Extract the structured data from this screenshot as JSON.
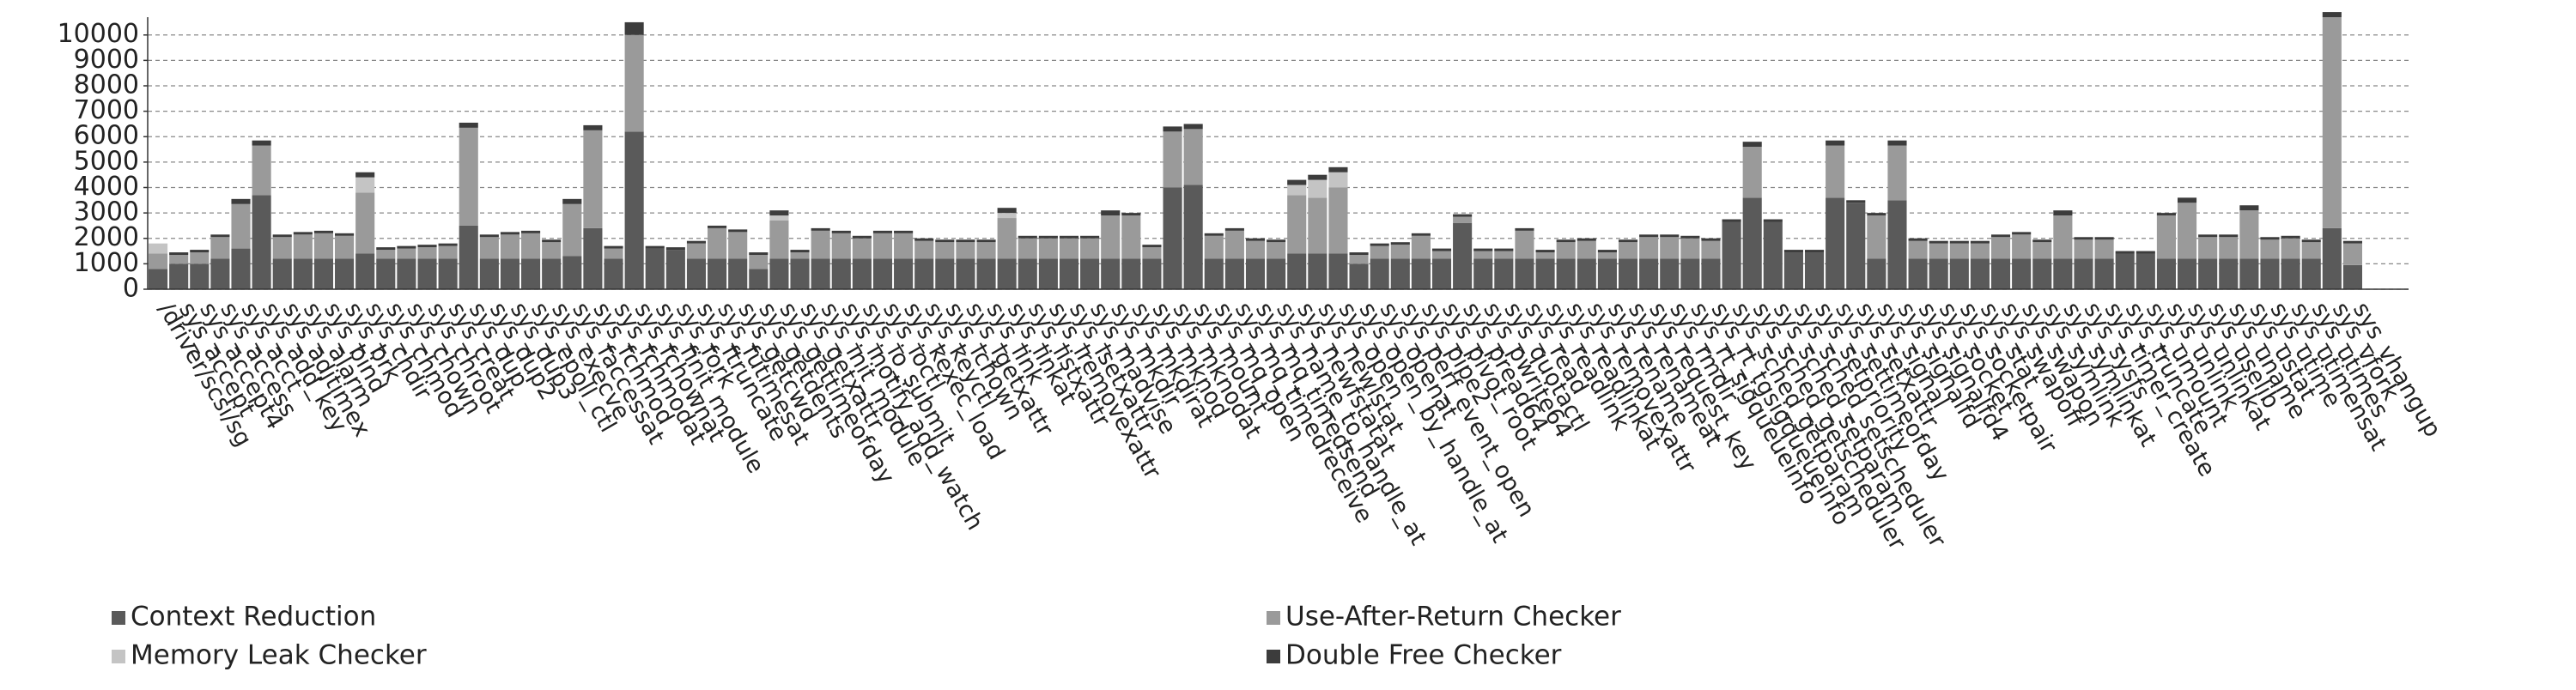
{
  "chart_data": {
    "type": "stacked_bar",
    "categories": [
      "/driver/scsi/sg",
      "sys_accept",
      "sys_accept4",
      "sys_access",
      "sys_acct",
      "sys_add_key",
      "sys_adjtimex",
      "sys_alarm",
      "sys_bind",
      "sys_brk",
      "sys_chdir",
      "sys_chmod",
      "sys_chown",
      "sys_chroot",
      "sys_creat",
      "sys_dup",
      "sys_dup2",
      "sys_dup3",
      "sys_epoll_ctl",
      "sys_execve",
      "sys_faccessat",
      "sys_fchmod",
      "sys_fchmodat",
      "sys_fchownat",
      "sys_finit_module",
      "sys_fork",
      "sys_ftruncate",
      "sys_futimesat",
      "sys_getcwd",
      "sys_getdents",
      "sys_gettimeofday",
      "sys_getxattr",
      "sys_init_module",
      "sys_inotify_add_watch",
      "sys_io_submit",
      "sys_ioctl",
      "sys_kexec_load",
      "sys_keyctl",
      "sys_lchown",
      "sys_lgetxattr",
      "sys_link",
      "sys_linkat",
      "sys_listxattr",
      "sys_lremovexattr",
      "sys_lsetxattr",
      "sys_madvise",
      "sys_mkdir",
      "sys_mkdirat",
      "sys_mknod",
      "sys_mknodat",
      "sys_mount",
      "sys_mq_open",
      "sys_mq_timedreceive",
      "sys_mq_timedsend",
      "sys_name_to_handle_at",
      "sys_newfstatat",
      "sys_newlstat",
      "sys_open",
      "sys_open_by_handle_at",
      "sys_openat",
      "sys_perf_event_open",
      "sys_pipe2",
      "sys_pivot_root",
      "sys_pread64",
      "sys_pwrite64",
      "sys_quotactl",
      "sys_read",
      "sys_readlink",
      "sys_readlinkat",
      "sys_removexattr",
      "sys_rename",
      "sys_renameat",
      "sys_request_key",
      "sys_rmdir",
      "sys_rt_sigqueueinfo",
      "sys_rt_tgsigqueueinfo",
      "sys_sched_getparam",
      "sys_sched_getscheduler",
      "sys_sched_setparam",
      "sys_sched_setscheduler",
      "sys_setpriority",
      "sys_settimeofday",
      "sys_setxattr",
      "sys_signal",
      "sys_signalfd",
      "sys_signalfd4",
      "sys_socket",
      "sys_socketpair",
      "sys_stat",
      "sys_swapoff",
      "sys_swapon",
      "sys_symlink",
      "sys_symlinkat",
      "sys_sysfs",
      "sys_timer_create",
      "sys_truncate",
      "sys_umount",
      "sys_unlink",
      "sys_unlinkat",
      "sys_uselib",
      "sys_uname",
      "sys_ustat",
      "sys_utime",
      "sys_utimensat",
      "sys_utimes",
      "sys_vfork",
      "sys_vhangup"
    ],
    "series": [
      {
        "name": "Context Reduction",
        "color": "#5a5a5a",
        "values": [
          800,
          1000,
          1000,
          1200,
          1600,
          3700,
          1200,
          1200,
          1200,
          1200,
          1400,
          1200,
          1200,
          1200,
          1200,
          2500,
          1200,
          1200,
          1200,
          1200,
          1300,
          2400,
          1200,
          6200,
          1600,
          1550,
          1200,
          1200,
          1200,
          800,
          1200,
          1200,
          1200,
          1200,
          1200,
          1200,
          1200,
          1200,
          1200,
          1200,
          1200,
          1200,
          1200,
          1200,
          1200,
          1200,
          1200,
          1200,
          1200,
          4000,
          4100,
          1200,
          1200,
          1200,
          1200,
          1400,
          1400,
          1400,
          1000,
          1200,
          1200,
          1200,
          1200,
          2600,
          1200,
          1200,
          1200,
          1200,
          1200,
          1200,
          1200,
          1200,
          1200,
          1200,
          1200,
          1200,
          2650,
          3600,
          2650,
          1450,
          1450,
          3600,
          3400,
          1200,
          3500,
          1200,
          1200,
          1200,
          1200,
          1200,
          1200,
          1200,
          1200,
          1200,
          1200,
          1400,
          1400,
          1200,
          1200,
          1200,
          1200,
          1200,
          1200,
          1200,
          1200,
          2400,
          950
        ]
      },
      {
        "name": "Use-After-Return Checker",
        "color": "#9a9a9a",
        "values": [
          600,
          350,
          450,
          850,
          1750,
          1950,
          850,
          950,
          1000,
          900,
          2400,
          350,
          400,
          450,
          500,
          3850,
          850,
          950,
          1000,
          650,
          2050,
          3850,
          400,
          3800,
          0,
          0,
          600,
          1200,
          1050,
          550,
          1500,
          250,
          1100,
          1000,
          800,
          1000,
          1000,
          700,
          650,
          650,
          650,
          1600,
          800,
          800,
          800,
          800,
          1700,
          1700,
          450,
          2200,
          2200,
          900,
          1100,
          700,
          650,
          2300,
          2200,
          2600,
          350,
          500,
          550,
          900,
          300,
          250,
          300,
          300,
          1100,
          250,
          650,
          700,
          250,
          650,
          850,
          850,
          800,
          700,
          0,
          2000,
          0,
          0,
          0,
          2050,
          0,
          1700,
          2150,
          700,
          600,
          600,
          600,
          850,
          950,
          650,
          1700,
          750,
          750,
          0,
          0,
          1700,
          2200,
          850,
          850,
          1900,
          750,
          800,
          650,
          8300,
          850
        ]
      },
      {
        "name": "Memory Leak Checker",
        "color": "#c4c4c4",
        "values": [
          400,
          0,
          0,
          0,
          0,
          0,
          0,
          0,
          0,
          0,
          600,
          0,
          0,
          0,
          0,
          0,
          0,
          0,
          0,
          0,
          0,
          0,
          0,
          0,
          0,
          0,
          0,
          0,
          0,
          0,
          200,
          0,
          0,
          0,
          0,
          0,
          0,
          0,
          0,
          0,
          0,
          200,
          0,
          0,
          0,
          0,
          0,
          0,
          0,
          0,
          0,
          0,
          0,
          0,
          0,
          400,
          700,
          600,
          0,
          0,
          0,
          0,
          0,
          0,
          0,
          0,
          0,
          0,
          0,
          0,
          0,
          0,
          0,
          0,
          0,
          0,
          0,
          0,
          0,
          0,
          0,
          0,
          0,
          0,
          0,
          0,
          0,
          0,
          0,
          0,
          0,
          0,
          0,
          0,
          0,
          0,
          0,
          0,
          0,
          0,
          0,
          0,
          0,
          0,
          0,
          0,
          0
        ]
      },
      {
        "name": "Double Free Checker",
        "color": "#3c3c3c",
        "values": [
          0,
          100,
          100,
          100,
          200,
          200,
          100,
          100,
          100,
          100,
          200,
          100,
          100,
          100,
          100,
          200,
          100,
          100,
          100,
          100,
          200,
          200,
          100,
          500,
          100,
          100,
          100,
          100,
          100,
          100,
          200,
          100,
          100,
          100,
          100,
          100,
          100,
          100,
          100,
          100,
          100,
          200,
          100,
          100,
          100,
          100,
          200,
          100,
          100,
          200,
          200,
          100,
          100,
          100,
          100,
          200,
          200,
          200,
          100,
          100,
          100,
          100,
          100,
          100,
          100,
          100,
          100,
          100,
          100,
          100,
          100,
          100,
          100,
          100,
          100,
          100,
          100,
          200,
          100,
          100,
          100,
          200,
          100,
          100,
          200,
          100,
          100,
          100,
          100,
          100,
          100,
          100,
          200,
          100,
          100,
          100,
          100,
          100,
          200,
          100,
          100,
          200,
          100,
          100,
          100,
          200,
          100
        ]
      }
    ],
    "ylim": [
      0,
      10700
    ],
    "yticks": [
      0,
      1000,
      2000,
      3000,
      4000,
      5000,
      6000,
      7000,
      8000,
      9000,
      10000
    ],
    "grid": true,
    "legend": "bottom"
  }
}
